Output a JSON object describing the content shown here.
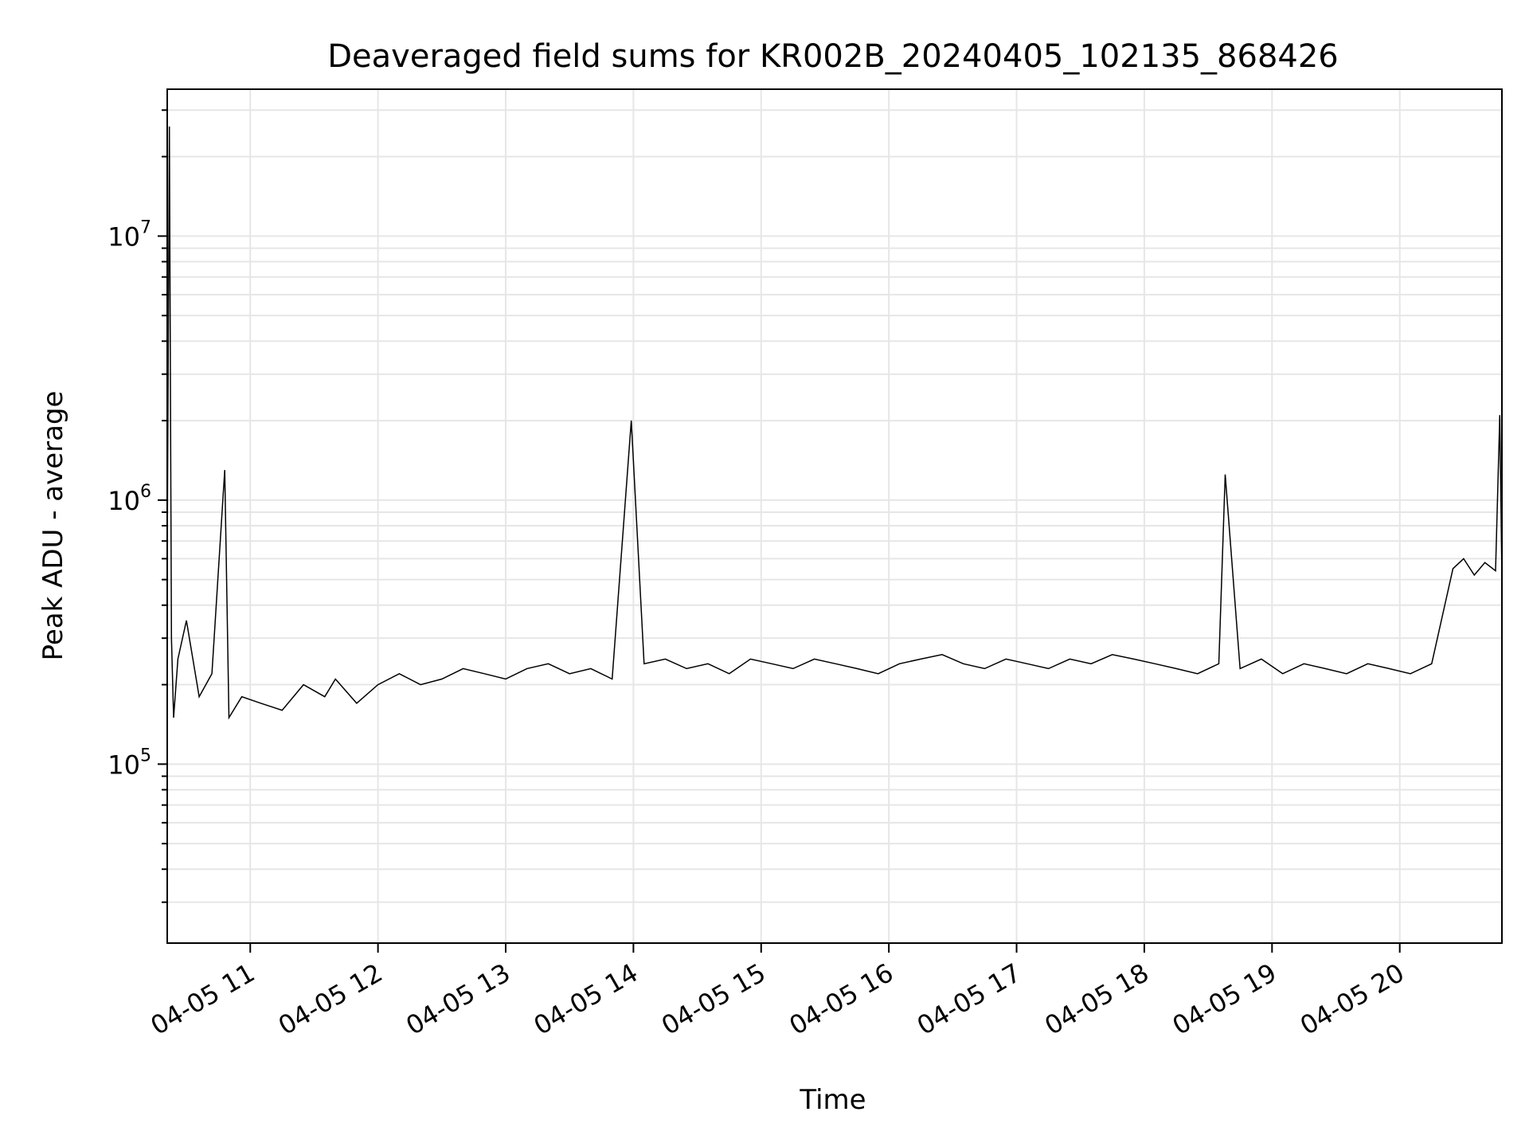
{
  "chart_data": {
    "type": "line",
    "title": "Deaveraged field sums for KR002B_20240405_102135_868426",
    "xlabel": "Time",
    "ylabel": "Peak ADU - average",
    "y_scale": "log",
    "ylim": [
      21000,
      36000000
    ],
    "xlim": [
      "2024-04-05 10:21",
      "2024-04-05 20:48"
    ],
    "grid": true,
    "line_color": "#000000",
    "grid_color": "#e6e6e6",
    "x_ticks": [
      {
        "value": "2024-04-05 11:00",
        "label": "04-05 11"
      },
      {
        "value": "2024-04-05 12:00",
        "label": "04-05 12"
      },
      {
        "value": "2024-04-05 13:00",
        "label": "04-05 13"
      },
      {
        "value": "2024-04-05 14:00",
        "label": "04-05 14"
      },
      {
        "value": "2024-04-05 15:00",
        "label": "04-05 15"
      },
      {
        "value": "2024-04-05 16:00",
        "label": "04-05 16"
      },
      {
        "value": "2024-04-05 17:00",
        "label": "04-05 17"
      },
      {
        "value": "2024-04-05 18:00",
        "label": "04-05 18"
      },
      {
        "value": "2024-04-05 19:00",
        "label": "04-05 19"
      },
      {
        "value": "2024-04-05 20:00",
        "label": "04-05 20"
      }
    ],
    "y_ticks": [
      {
        "value": 100000,
        "base": "10",
        "exp": "5"
      },
      {
        "value": 1000000,
        "base": "10",
        "exp": "6"
      },
      {
        "value": 10000000,
        "base": "10",
        "exp": "7"
      }
    ],
    "series": [
      {
        "x": [
          "2024-04-05 10:21",
          "2024-04-05 10:22",
          "2024-04-05 10:23",
          "2024-04-05 10:24",
          "2024-04-05 10:26",
          "2024-04-05 10:30",
          "2024-04-05 10:36",
          "2024-04-05 10:42",
          "2024-04-05 10:48",
          "2024-04-05 10:50",
          "2024-04-05 10:56",
          "2024-04-05 11:05",
          "2024-04-05 11:15",
          "2024-04-05 11:25",
          "2024-04-05 11:35",
          "2024-04-05 11:40",
          "2024-04-05 11:50",
          "2024-04-05 12:00",
          "2024-04-05 12:10",
          "2024-04-05 12:20",
          "2024-04-05 12:30",
          "2024-04-05 12:40",
          "2024-04-05 12:50",
          "2024-04-05 13:00",
          "2024-04-05 13:10",
          "2024-04-05 13:20",
          "2024-04-05 13:30",
          "2024-04-05 13:40",
          "2024-04-05 13:50",
          "2024-04-05 13:59",
          "2024-04-05 14:05",
          "2024-04-05 14:15",
          "2024-04-05 14:25",
          "2024-04-05 14:35",
          "2024-04-05 14:45",
          "2024-04-05 14:55",
          "2024-04-05 15:05",
          "2024-04-05 15:15",
          "2024-04-05 15:25",
          "2024-04-05 15:35",
          "2024-04-05 15:45",
          "2024-04-05 15:55",
          "2024-04-05 16:05",
          "2024-04-05 16:15",
          "2024-04-05 16:25",
          "2024-04-05 16:35",
          "2024-04-05 16:45",
          "2024-04-05 16:55",
          "2024-04-05 17:05",
          "2024-04-05 17:15",
          "2024-04-05 17:25",
          "2024-04-05 17:35",
          "2024-04-05 17:45",
          "2024-04-05 17:55",
          "2024-04-05 18:05",
          "2024-04-05 18:15",
          "2024-04-05 18:25",
          "2024-04-05 18:35",
          "2024-04-05 18:38",
          "2024-04-05 18:45",
          "2024-04-05 18:55",
          "2024-04-05 19:05",
          "2024-04-05 19:15",
          "2024-04-05 19:25",
          "2024-04-05 19:35",
          "2024-04-05 19:45",
          "2024-04-05 19:55",
          "2024-04-05 20:05",
          "2024-04-05 20:15",
          "2024-04-05 20:25",
          "2024-04-05 20:30",
          "2024-04-05 20:35",
          "2024-04-05 20:40",
          "2024-04-05 20:45",
          "2024-04-05 20:47",
          "2024-04-05 20:48"
        ],
        "y": [
          600000,
          26000000,
          300000,
          150000,
          250000,
          350000,
          180000,
          220000,
          1300000,
          150000,
          180000,
          170000,
          160000,
          200000,
          180000,
          210000,
          170000,
          200000,
          220000,
          200000,
          210000,
          230000,
          220000,
          210000,
          230000,
          240000,
          220000,
          230000,
          210000,
          2000000,
          240000,
          250000,
          230000,
          240000,
          220000,
          250000,
          240000,
          230000,
          250000,
          240000,
          230000,
          220000,
          240000,
          250000,
          260000,
          240000,
          230000,
          250000,
          240000,
          230000,
          250000,
          240000,
          260000,
          250000,
          240000,
          230000,
          220000,
          240000,
          1250000,
          230000,
          250000,
          220000,
          240000,
          230000,
          220000,
          240000,
          230000,
          220000,
          240000,
          550000,
          600000,
          520000,
          580000,
          540000,
          2100000,
          500000
        ]
      }
    ]
  }
}
